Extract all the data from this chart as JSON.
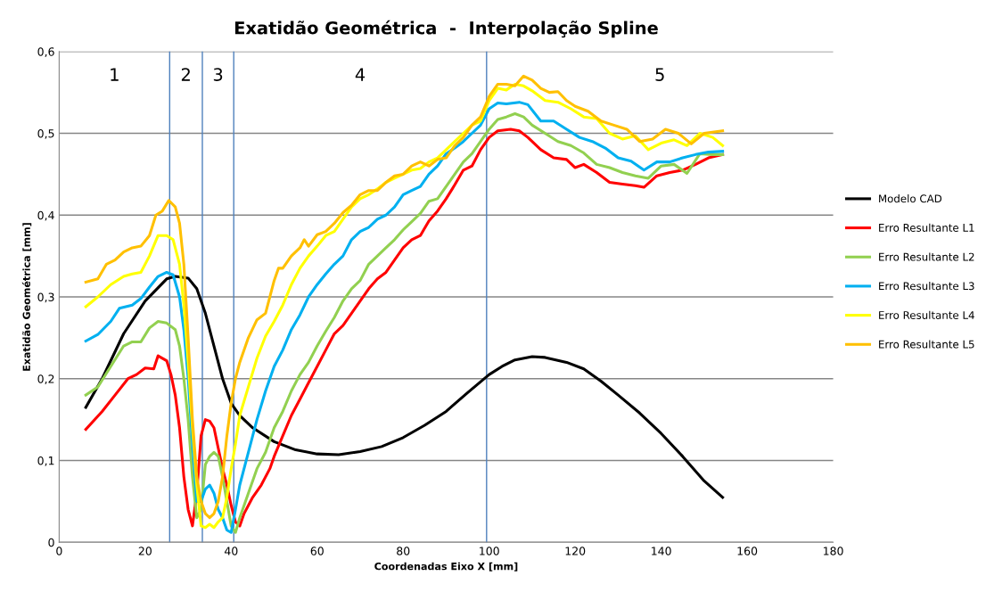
{
  "chart_data": {
    "type": "line",
    "title": "Exatidão Geométrica  -  Interpolação Spline",
    "xlabel": "Coordenadas Eixo X [mm]",
    "ylabel": "Exatidão Geométrica [mm]",
    "xlim": [
      0,
      180
    ],
    "xticks": [
      0,
      20,
      40,
      60,
      80,
      100,
      120,
      140,
      160,
      180
    ],
    "ylim": [
      0,
      0.6
    ],
    "yticks": [
      0,
      {
        "value": 0.1,
        "label": "0,1"
      },
      {
        "value": 0.2,
        "label": "0,2"
      },
      {
        "value": 0.3,
        "label": "0,3"
      },
      {
        "value": 0.4,
        "label": "0,4"
      },
      {
        "value": 0.5,
        "label": "0,5"
      },
      {
        "value": 0.6,
        "label": "0,6"
      }
    ],
    "grid": "y",
    "legend": "right",
    "marker": "none",
    "line_style": "solid",
    "ref_lines": [
      {
        "axis": "x",
        "value": 25.7,
        "color": "#4f81bd"
      },
      {
        "axis": "x",
        "value": 33.3,
        "color": "#4f81bd"
      },
      {
        "axis": "x",
        "value": 40.6,
        "color": "#4f81bd"
      },
      {
        "axis": "x",
        "value": 99.4,
        "color": "#4f81bd"
      }
    ],
    "annotations": [
      "1",
      "2",
      "3",
      "4",
      "5"
    ],
    "series": [
      {
        "name": "Modelo CAD",
        "color": "#000000",
        "x": [
          6.2,
          10,
          15,
          20,
          25,
          27,
          30,
          32,
          34,
          36,
          38,
          40,
          42,
          45,
          50,
          55,
          60,
          65,
          70,
          75,
          80,
          85,
          90,
          95,
          100,
          103,
          106,
          110,
          113,
          118,
          122,
          126,
          130,
          135,
          140,
          145,
          150,
          154.3
        ],
        "values": [
          0.165,
          0.2,
          0.255,
          0.295,
          0.322,
          0.325,
          0.323,
          0.31,
          0.28,
          0.24,
          0.2,
          0.17,
          0.155,
          0.14,
          0.123,
          0.113,
          0.108,
          0.107,
          0.111,
          0.117,
          0.128,
          0.143,
          0.16,
          0.183,
          0.205,
          0.215,
          0.223,
          0.227,
          0.226,
          0.22,
          0.212,
          0.197,
          0.18,
          0.158,
          0.133,
          0.105,
          0.075,
          0.055
        ]
      },
      {
        "name": "Erro Resultante L1",
        "color": "#ff0000",
        "x": [
          6.2,
          10,
          13,
          16,
          18,
          20,
          22,
          23,
          25,
          26,
          27,
          28,
          29,
          30,
          31,
          32,
          33,
          34,
          35,
          36,
          37,
          38,
          39,
          40,
          41,
          42,
          43,
          45,
          47,
          49,
          50,
          52,
          54,
          56,
          58,
          60,
          62,
          64,
          66,
          68,
          70,
          72,
          74,
          76,
          78,
          80,
          82,
          84,
          86,
          88,
          90,
          92,
          94,
          96,
          98,
          100,
          102,
          105,
          107,
          109,
          112,
          115,
          118,
          120,
          122,
          125,
          128,
          131,
          134,
          136,
          139,
          142,
          145,
          148,
          151,
          154.3
        ],
        "values": [
          0.138,
          0.16,
          0.18,
          0.2,
          0.205,
          0.213,
          0.212,
          0.228,
          0.222,
          0.205,
          0.18,
          0.14,
          0.08,
          0.04,
          0.02,
          0.06,
          0.13,
          0.15,
          0.148,
          0.14,
          0.115,
          0.09,
          0.07,
          0.045,
          0.025,
          0.02,
          0.035,
          0.055,
          0.07,
          0.09,
          0.105,
          0.13,
          0.155,
          0.175,
          0.195,
          0.215,
          0.235,
          0.255,
          0.265,
          0.28,
          0.295,
          0.31,
          0.322,
          0.33,
          0.345,
          0.36,
          0.37,
          0.375,
          0.393,
          0.405,
          0.42,
          0.437,
          0.455,
          0.46,
          0.48,
          0.495,
          0.503,
          0.505,
          0.503,
          0.495,
          0.48,
          0.47,
          0.468,
          0.458,
          0.462,
          0.452,
          0.44,
          0.438,
          0.436,
          0.434,
          0.448,
          0.452,
          0.455,
          0.462,
          0.47,
          0.474
        ]
      },
      {
        "name": "Erro Resultante L2",
        "color": "#92d050",
        "x": [
          6.2,
          9,
          12,
          15,
          17,
          19,
          21,
          23,
          25,
          27,
          28,
          29,
          30,
          31,
          32,
          33,
          34,
          35,
          36,
          37,
          38,
          39,
          40,
          41,
          42,
          44,
          46,
          48,
          50,
          52,
          54,
          56,
          58,
          60,
          62,
          64,
          66,
          68,
          70,
          72,
          74,
          76,
          78,
          80,
          82,
          84,
          86,
          88,
          90,
          92,
          94,
          96,
          98,
          100,
          102,
          104,
          106,
          108,
          110,
          113,
          116,
          119,
          122,
          125,
          128,
          131,
          134,
          137,
          140,
          143,
          146,
          149,
          152,
          154.3
        ],
        "values": [
          0.18,
          0.19,
          0.215,
          0.24,
          0.245,
          0.245,
          0.262,
          0.27,
          0.268,
          0.26,
          0.24,
          0.2,
          0.15,
          0.08,
          0.03,
          0.04,
          0.095,
          0.105,
          0.11,
          0.105,
          0.08,
          0.05,
          0.02,
          0.012,
          0.03,
          0.06,
          0.09,
          0.11,
          0.14,
          0.16,
          0.185,
          0.205,
          0.22,
          0.24,
          0.258,
          0.275,
          0.295,
          0.31,
          0.32,
          0.34,
          0.35,
          0.36,
          0.37,
          0.382,
          0.392,
          0.402,
          0.417,
          0.42,
          0.435,
          0.45,
          0.465,
          0.475,
          0.49,
          0.505,
          0.517,
          0.52,
          0.524,
          0.52,
          0.51,
          0.5,
          0.49,
          0.485,
          0.476,
          0.462,
          0.458,
          0.452,
          0.448,
          0.445,
          0.46,
          0.462,
          0.451,
          0.475,
          0.474,
          0.474
        ]
      },
      {
        "name": "Erro Resultante L3",
        "color": "#00b0f0",
        "x": [
          6.2,
          9,
          12,
          14,
          17,
          19,
          21,
          23,
          25,
          26.5,
          28,
          29,
          30,
          31,
          32,
          33,
          34,
          35,
          36,
          37,
          38,
          39,
          40,
          41,
          42,
          44,
          46,
          48,
          50,
          52,
          54,
          56,
          58,
          60,
          62,
          64,
          66,
          68,
          70,
          72,
          74,
          76,
          78,
          80,
          82,
          84,
          86,
          88,
          90,
          92,
          94,
          96,
          98,
          100,
          102,
          104,
          107,
          109,
          112,
          115,
          118,
          121,
          124,
          127,
          130,
          133,
          136,
          139,
          142,
          145,
          148,
          151,
          154.3
        ],
        "values": [
          0.246,
          0.254,
          0.27,
          0.286,
          0.29,
          0.298,
          0.312,
          0.325,
          0.33,
          0.327,
          0.3,
          0.26,
          0.2,
          0.12,
          0.05,
          0.05,
          0.065,
          0.07,
          0.06,
          0.04,
          0.03,
          0.015,
          0.012,
          0.04,
          0.07,
          0.11,
          0.15,
          0.185,
          0.215,
          0.235,
          0.26,
          0.278,
          0.3,
          0.315,
          0.328,
          0.34,
          0.35,
          0.37,
          0.38,
          0.385,
          0.395,
          0.4,
          0.41,
          0.425,
          0.43,
          0.435,
          0.45,
          0.46,
          0.475,
          0.482,
          0.49,
          0.5,
          0.51,
          0.53,
          0.537,
          0.536,
          0.538,
          0.535,
          0.515,
          0.515,
          0.505,
          0.495,
          0.49,
          0.482,
          0.47,
          0.466,
          0.455,
          0.465,
          0.465,
          0.47,
          0.474,
          0.477,
          0.478
        ]
      },
      {
        "name": "Erro Resultante L4",
        "color": "#ffff00",
        "x": [
          6.2,
          9,
          12,
          15,
          17,
          19,
          21,
          23,
          25,
          26.5,
          28,
          29,
          30,
          31,
          32,
          33,
          34,
          35,
          36,
          37,
          38,
          39,
          40,
          41,
          42,
          44,
          46,
          48,
          50,
          52,
          54,
          56,
          58,
          60,
          62,
          64,
          66,
          68,
          70,
          72,
          74,
          76,
          78,
          80,
          82,
          84,
          86,
          88,
          90,
          92,
          94,
          96,
          98,
          100,
          102,
          104,
          106,
          108,
          110,
          113,
          116,
          119,
          122,
          125,
          128,
          131,
          134,
          137,
          140,
          143,
          146,
          149,
          152,
          154.3
        ],
        "values": [
          0.288,
          0.3,
          0.315,
          0.325,
          0.328,
          0.33,
          0.35,
          0.375,
          0.375,
          0.37,
          0.34,
          0.29,
          0.22,
          0.14,
          0.07,
          0.02,
          0.018,
          0.022,
          0.018,
          0.025,
          0.03,
          0.055,
          0.09,
          0.12,
          0.155,
          0.19,
          0.225,
          0.252,
          0.27,
          0.29,
          0.315,
          0.335,
          0.35,
          0.362,
          0.375,
          0.38,
          0.395,
          0.41,
          0.42,
          0.425,
          0.432,
          0.44,
          0.445,
          0.45,
          0.455,
          0.457,
          0.465,
          0.47,
          0.48,
          0.49,
          0.5,
          0.51,
          0.515,
          0.54,
          0.555,
          0.553,
          0.56,
          0.558,
          0.552,
          0.54,
          0.538,
          0.53,
          0.52,
          0.518,
          0.5,
          0.493,
          0.497,
          0.48,
          0.488,
          0.492,
          0.485,
          0.5,
          0.495,
          0.485
        ]
      },
      {
        "name": "Erro Resultante L5",
        "color": "#ffc000",
        "x": [
          6.2,
          9,
          11,
          13,
          15,
          17,
          19,
          21,
          22.5,
          24,
          25.5,
          27,
          28,
          29,
          30,
          31,
          32,
          33,
          34,
          35,
          36,
          37,
          38,
          39,
          40,
          41,
          42,
          44,
          46,
          48,
          50,
          51,
          52,
          54,
          56,
          57,
          58,
          60,
          62,
          64,
          66,
          68,
          70,
          72,
          74,
          76,
          78,
          80,
          82,
          84,
          86,
          88,
          90,
          92,
          94,
          96,
          98,
          100,
          102,
          104,
          106,
          108,
          110,
          112,
          114,
          116,
          118,
          120,
          123,
          126,
          129,
          132,
          135,
          138,
          141,
          144,
          147,
          150,
          154.3
        ],
        "values": [
          0.318,
          0.322,
          0.34,
          0.345,
          0.355,
          0.36,
          0.362,
          0.375,
          0.4,
          0.405,
          0.418,
          0.41,
          0.39,
          0.34,
          0.25,
          0.15,
          0.08,
          0.05,
          0.035,
          0.03,
          0.035,
          0.05,
          0.08,
          0.13,
          0.17,
          0.2,
          0.22,
          0.25,
          0.272,
          0.28,
          0.32,
          0.335,
          0.335,
          0.35,
          0.36,
          0.37,
          0.362,
          0.376,
          0.38,
          0.39,
          0.403,
          0.412,
          0.425,
          0.43,
          0.43,
          0.44,
          0.448,
          0.45,
          0.46,
          0.465,
          0.46,
          0.468,
          0.47,
          0.485,
          0.495,
          0.51,
          0.52,
          0.545,
          0.56,
          0.56,
          0.558,
          0.57,
          0.565,
          0.555,
          0.55,
          0.551,
          0.54,
          0.533,
          0.527,
          0.515,
          0.51,
          0.505,
          0.49,
          0.493,
          0.505,
          0.5,
          0.487,
          0.5,
          0.503
        ]
      }
    ]
  }
}
